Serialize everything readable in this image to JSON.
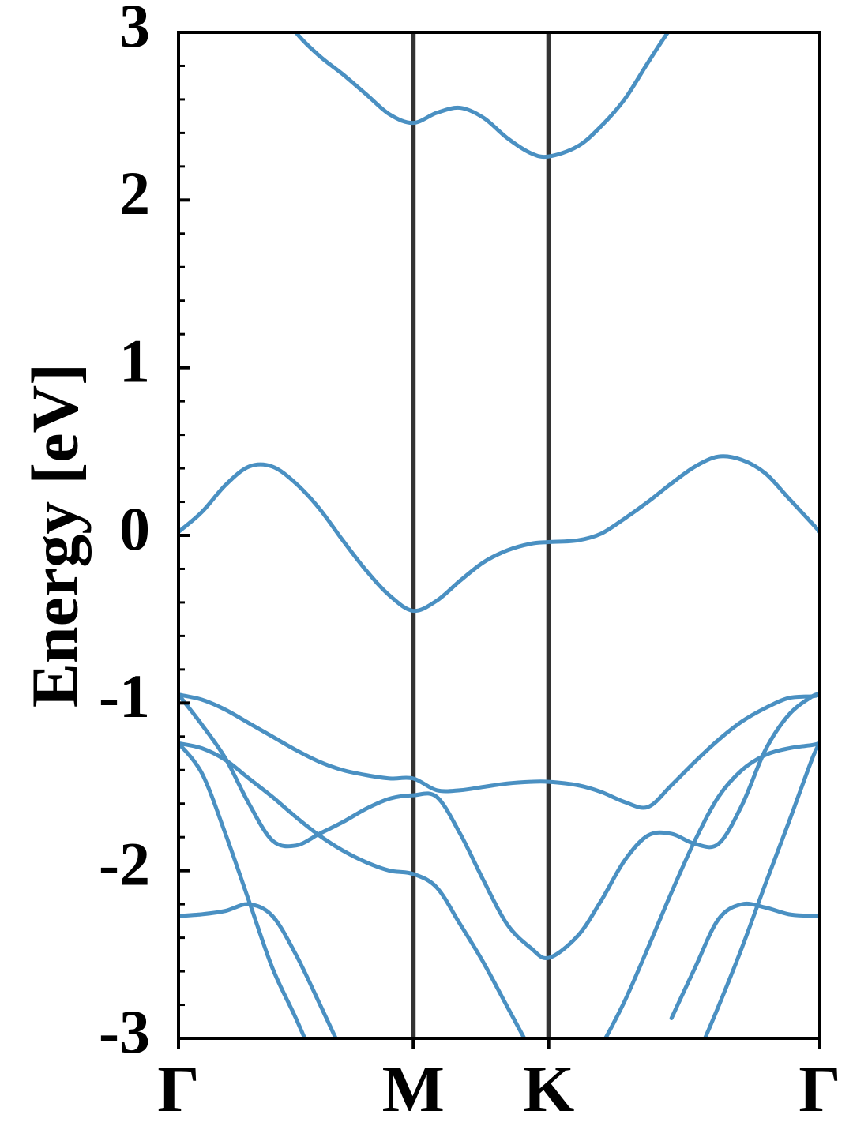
{
  "chart_data": {
    "type": "line",
    "ylabel": "Energy [eV]",
    "x": [
      0,
      0.1,
      0.2,
      0.3,
      0.4,
      0.5,
      0.6,
      0.7,
      0.8,
      0.9,
      1.0,
      1.1,
      1.2,
      1.3,
      1.4,
      1.5,
      1.577,
      1.7,
      1.8,
      1.9,
      2.0,
      2.1,
      2.2,
      2.3,
      2.4,
      2.5,
      2.6,
      2.7,
      2.732
    ],
    "xlim": [
      0,
      2.732
    ],
    "xticks": [
      {
        "value": 0,
        "label": "Γ"
      },
      {
        "value": 1.0,
        "label": "M"
      },
      {
        "value": 1.577,
        "label": "K"
      },
      {
        "value": 2.732,
        "label": "Γ"
      }
    ],
    "kpoint_lines": true,
    "kpoint_line_color": "#333333",
    "ylim": [
      -3,
      3
    ],
    "yticks": [
      -3,
      -2,
      -1,
      0,
      1,
      2,
      3
    ],
    "yminorticks": [
      -2.8,
      -2.6,
      -2.4,
      -2.2,
      -1.8,
      -1.6,
      -1.4,
      -1.2,
      -0.8,
      -0.6,
      -0.4,
      -0.2,
      0.2,
      0.4,
      0.6,
      0.8,
      1.2,
      1.4,
      1.6,
      1.8,
      2.2,
      2.4,
      2.6,
      2.8
    ],
    "series": [
      {
        "color": "#4a90c2",
        "values": [
          null,
          null,
          null,
          null,
          3.2,
          3.0,
          2.86,
          2.75,
          2.63,
          2.51,
          2.46,
          2.52,
          2.55,
          2.49,
          2.37,
          2.28,
          2.26,
          2.32,
          2.44,
          2.6,
          2.82,
          3.03,
          3.2,
          null,
          null,
          null,
          null,
          null,
          null
        ]
      },
      {
        "color": "#4a90c2",
        "values": [
          0.02,
          0.14,
          0.3,
          0.41,
          0.41,
          0.31,
          0.16,
          -0.03,
          -0.21,
          -0.36,
          -0.45,
          -0.39,
          -0.27,
          -0.16,
          -0.09,
          -0.05,
          -0.04,
          -0.03,
          0.01,
          0.1,
          0.2,
          0.31,
          0.41,
          0.47,
          0.45,
          0.37,
          0.22,
          0.07,
          0.02
        ]
      },
      {
        "color": "#4a90c2",
        "values": [
          -0.95,
          -0.98,
          -1.04,
          -1.12,
          -1.2,
          -1.28,
          -1.35,
          -1.4,
          -1.43,
          -1.45,
          -1.45,
          -1.52,
          -1.52,
          -1.5,
          -1.48,
          -1.47,
          -1.47,
          -1.49,
          -1.53,
          -1.59,
          -1.62,
          -1.49,
          -1.35,
          -1.22,
          -1.11,
          -1.03,
          -0.97,
          -0.96,
          -0.95
        ]
      },
      {
        "color": "#4a90c2",
        "values": [
          -0.95,
          -1.13,
          -1.33,
          -1.6,
          -1.82,
          -1.85,
          -1.78,
          -1.71,
          -1.63,
          -1.57,
          -1.55,
          -1.56,
          -1.78,
          -2.06,
          -2.32,
          -2.46,
          -2.52,
          -2.39,
          -2.18,
          -1.94,
          -1.79,
          -1.78,
          -1.84,
          -1.84,
          -1.61,
          -1.28,
          -1.07,
          -0.96,
          -0.95
        ]
      },
      {
        "color": "#4a90c2",
        "values": [
          -1.24,
          -1.27,
          -1.34,
          -1.45,
          -1.56,
          -1.68,
          -1.79,
          -1.88,
          -1.95,
          -2.0,
          -2.02,
          -2.1,
          -2.32,
          -2.55,
          -2.81,
          -3.07,
          null,
          null,
          -3.05,
          -2.78,
          -2.46,
          -2.13,
          -1.82,
          -1.56,
          -1.4,
          -1.31,
          -1.27,
          -1.25,
          -1.24
        ]
      },
      {
        "color": "#4a90c2",
        "values": [
          -1.24,
          -1.42,
          -1.78,
          -2.18,
          -2.58,
          -2.88,
          -3.2,
          null,
          null,
          null,
          null,
          null,
          null,
          null,
          null,
          null,
          null,
          null,
          null,
          null,
          null,
          null,
          null,
          null,
          null,
          null,
          null,
          null,
          null
        ]
      },
      {
        "color": "#4a90c2",
        "values": [
          -2.27,
          -2.26,
          -2.24,
          -2.2,
          -2.27,
          -2.5,
          -2.79,
          -3.09,
          null,
          null,
          null,
          null,
          null,
          null,
          null,
          null,
          null,
          null,
          null,
          null,
          null,
          -2.88,
          -2.58,
          -2.29,
          -2.2,
          -2.22,
          -2.26,
          -2.27,
          -2.27
        ]
      },
      {
        "color": "#4a90c2",
        "values": [
          null,
          null,
          null,
          null,
          null,
          null,
          null,
          null,
          null,
          null,
          null,
          null,
          null,
          null,
          null,
          null,
          null,
          null,
          null,
          null,
          null,
          null,
          -3.14,
          -2.81,
          -2.46,
          -2.08,
          -1.71,
          -1.33,
          -1.24
        ]
      }
    ]
  }
}
